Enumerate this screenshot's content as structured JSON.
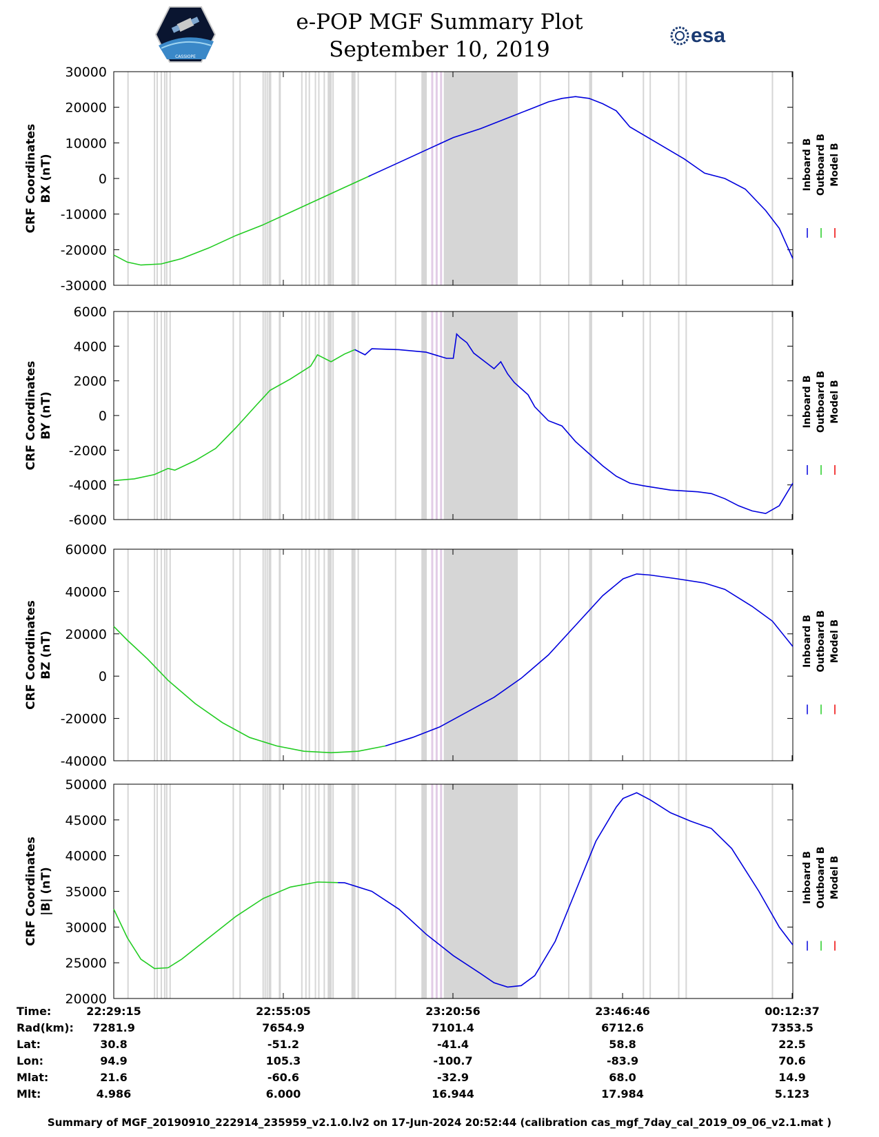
{
  "title": "e-POP MGF Summary Plot",
  "date": "September 10, 2019",
  "logos": {
    "left": "cassiope-mission-logo",
    "right": "esa",
    "left_text": "CASSIOPE"
  },
  "colors": {
    "inboard": "#0000dd",
    "outboard": "#22cc22",
    "model": "#ee0000",
    "gap": "#d6d6d6",
    "gap_pink": "#e2cce6"
  },
  "legend": [
    "Inboard B",
    "Outboard B",
    "Model B"
  ],
  "time_ticks": [
    "22:29:15",
    "22:55:05",
    "23:20:56",
    "23:46:46",
    "00:12:37"
  ],
  "ephemeris": {
    "labels": [
      "Time:",
      "Rad(km):",
      "Lat:",
      "Lon:",
      "Mlat:",
      "Mlt:"
    ],
    "rows": [
      [
        "22:29:15",
        "22:55:05",
        "23:20:56",
        "23:46:46",
        "00:12:37"
      ],
      [
        "7281.9",
        "7654.9",
        "7101.4",
        "6712.6",
        "7353.5"
      ],
      [
        "30.8",
        "-51.2",
        "-41.4",
        "58.8",
        "22.5"
      ],
      [
        "94.9",
        "105.3",
        "-100.7",
        "-83.9",
        "70.6"
      ],
      [
        "21.6",
        "-60.6",
        "-32.9",
        "68.0",
        "14.9"
      ],
      [
        "4.986",
        "6.000",
        "16.944",
        "17.984",
        "5.123"
      ]
    ]
  },
  "footer": "Summary of MGF_20190910_222914_235959_v2.1.0.lv2 on 17-Jun-2024 20:52:44 (calibration cas_mgf_7day_cal_2019_09_06_v2.1.mat )",
  "chart_data": [
    {
      "type": "line",
      "ylabel": [
        "CRF Coordinates",
        "BX (nT)"
      ],
      "ylim": [
        -30000,
        30000
      ],
      "yticks": [
        30000,
        20000,
        10000,
        0,
        -10000,
        -20000,
        -30000
      ],
      "switch_t": 0.375,
      "series": [
        {
          "name": "Outboard B/Inboard B",
          "points": [
            [
              0.0,
              -21500
            ],
            [
              0.02,
              -23500
            ],
            [
              0.04,
              -24300
            ],
            [
              0.07,
              -24000
            ],
            [
              0.1,
              -22500
            ],
            [
              0.14,
              -19500
            ],
            [
              0.18,
              -16000
            ],
            [
              0.22,
              -13000
            ],
            [
              0.26,
              -9500
            ],
            [
              0.3,
              -6000
            ],
            [
              0.34,
              -2500
            ],
            [
              0.38,
              1000
            ],
            [
              0.42,
              4500
            ],
            [
              0.46,
              8000
            ],
            [
              0.5,
              11500
            ],
            [
              0.54,
              14000
            ],
            [
              0.58,
              17000
            ],
            [
              0.62,
              20000
            ],
            [
              0.64,
              21500
            ],
            [
              0.66,
              22500
            ],
            [
              0.68,
              23000
            ],
            [
              0.7,
              22500
            ],
            [
              0.72,
              21000
            ],
            [
              0.74,
              19000
            ],
            [
              0.76,
              14500
            ],
            [
              0.8,
              10000
            ],
            [
              0.84,
              5500
            ],
            [
              0.87,
              1500
            ],
            [
              0.9,
              0
            ],
            [
              0.93,
              -3000
            ],
            [
              0.96,
              -9000
            ],
            [
              0.98,
              -14000
            ],
            [
              1.0,
              -22500
            ]
          ]
        }
      ]
    },
    {
      "type": "line",
      "ylabel": [
        "CRF Coordinates",
        "BY (nT)"
      ],
      "ylim": [
        -6000,
        6000
      ],
      "yticks": [
        6000,
        4000,
        2000,
        0,
        -2000,
        -4000,
        -6000
      ],
      "switch_t": 0.355,
      "series": [
        {
          "name": "Outboard B/Inboard B",
          "points": [
            [
              0.0,
              -3750
            ],
            [
              0.03,
              -3650
            ],
            [
              0.06,
              -3400
            ],
            [
              0.08,
              -3050
            ],
            [
              0.09,
              -3150
            ],
            [
              0.12,
              -2600
            ],
            [
              0.15,
              -1900
            ],
            [
              0.18,
              -700
            ],
            [
              0.21,
              600
            ],
            [
              0.23,
              1450
            ],
            [
              0.26,
              2100
            ],
            [
              0.29,
              2850
            ],
            [
              0.3,
              3500
            ],
            [
              0.32,
              3100
            ],
            [
              0.34,
              3550
            ],
            [
              0.355,
              3800
            ],
            [
              0.37,
              3500
            ],
            [
              0.38,
              3850
            ],
            [
              0.42,
              3800
            ],
            [
              0.46,
              3650
            ],
            [
              0.49,
              3300
            ],
            [
              0.5,
              3300
            ],
            [
              0.505,
              4700
            ],
            [
              0.51,
              4500
            ],
            [
              0.52,
              4200
            ],
            [
              0.53,
              3600
            ],
            [
              0.55,
              3000
            ],
            [
              0.56,
              2700
            ],
            [
              0.57,
              3100
            ],
            [
              0.58,
              2400
            ],
            [
              0.59,
              1900
            ],
            [
              0.61,
              1200
            ],
            [
              0.62,
              500
            ],
            [
              0.64,
              -300
            ],
            [
              0.66,
              -600
            ],
            [
              0.68,
              -1500
            ],
            [
              0.7,
              -2200
            ],
            [
              0.72,
              -2900
            ],
            [
              0.74,
              -3500
            ],
            [
              0.76,
              -3900
            ],
            [
              0.78,
              -4050
            ],
            [
              0.82,
              -4300
            ],
            [
              0.86,
              -4400
            ],
            [
              0.88,
              -4500
            ],
            [
              0.9,
              -4800
            ],
            [
              0.92,
              -5200
            ],
            [
              0.94,
              -5500
            ],
            [
              0.96,
              -5650
            ],
            [
              0.98,
              -5200
            ],
            [
              1.0,
              -3900
            ]
          ]
        }
      ]
    },
    {
      "type": "line",
      "ylabel": [
        "CRF Coordinates",
        "BZ (nT)"
      ],
      "ylim": [
        -40000,
        60000
      ],
      "yticks": [
        60000,
        40000,
        20000,
        0,
        -20000,
        -40000
      ],
      "switch_t": 0.4,
      "series": [
        {
          "name": "Outboard B/Inboard B",
          "points": [
            [
              0.0,
              23500
            ],
            [
              0.02,
              17000
            ],
            [
              0.05,
              8000
            ],
            [
              0.08,
              -2000
            ],
            [
              0.12,
              -13000
            ],
            [
              0.16,
              -22000
            ],
            [
              0.2,
              -29000
            ],
            [
              0.24,
              -33000
            ],
            [
              0.28,
              -35500
            ],
            [
              0.32,
              -36200
            ],
            [
              0.36,
              -35500
            ],
            [
              0.4,
              -33000
            ],
            [
              0.44,
              -29000
            ],
            [
              0.48,
              -24000
            ],
            [
              0.52,
              -17000
            ],
            [
              0.56,
              -10000
            ],
            [
              0.6,
              -1000
            ],
            [
              0.64,
              10000
            ],
            [
              0.68,
              24000
            ],
            [
              0.72,
              38000
            ],
            [
              0.75,
              46000
            ],
            [
              0.77,
              48300
            ],
            [
              0.79,
              47800
            ],
            [
              0.83,
              46000
            ],
            [
              0.87,
              44000
            ],
            [
              0.9,
              41000
            ],
            [
              0.94,
              33000
            ],
            [
              0.97,
              26000
            ],
            [
              1.0,
              14000
            ]
          ]
        }
      ]
    },
    {
      "type": "line",
      "ylabel": [
        "CRF Coordinates",
        "|B| (nT)"
      ],
      "ylim": [
        20000,
        50000
      ],
      "yticks": [
        50000,
        45000,
        40000,
        35000,
        30000,
        25000,
        20000
      ],
      "switch_t": 0.33,
      "series": [
        {
          "name": "Outboard B/Inboard B",
          "points": [
            [
              0.0,
              32500
            ],
            [
              0.02,
              28500
            ],
            [
              0.04,
              25500
            ],
            [
              0.06,
              24200
            ],
            [
              0.08,
              24300
            ],
            [
              0.1,
              25500
            ],
            [
              0.14,
              28500
            ],
            [
              0.18,
              31500
            ],
            [
              0.22,
              34000
            ],
            [
              0.26,
              35600
            ],
            [
              0.3,
              36300
            ],
            [
              0.34,
              36200
            ],
            [
              0.38,
              35000
            ],
            [
              0.42,
              32500
            ],
            [
              0.46,
              29000
            ],
            [
              0.5,
              26000
            ],
            [
              0.54,
              23500
            ],
            [
              0.56,
              22200
            ],
            [
              0.58,
              21600
            ],
            [
              0.6,
              21800
            ],
            [
              0.62,
              23200
            ],
            [
              0.65,
              28000
            ],
            [
              0.68,
              35000
            ],
            [
              0.71,
              42000
            ],
            [
              0.74,
              46800
            ],
            [
              0.75,
              48000
            ],
            [
              0.77,
              48800
            ],
            [
              0.79,
              47800
            ],
            [
              0.82,
              46000
            ],
            [
              0.85,
              44800
            ],
            [
              0.88,
              43800
            ],
            [
              0.91,
              41000
            ],
            [
              0.95,
              35000
            ],
            [
              0.98,
              30000
            ],
            [
              1.0,
              27500
            ]
          ]
        }
      ]
    }
  ]
}
